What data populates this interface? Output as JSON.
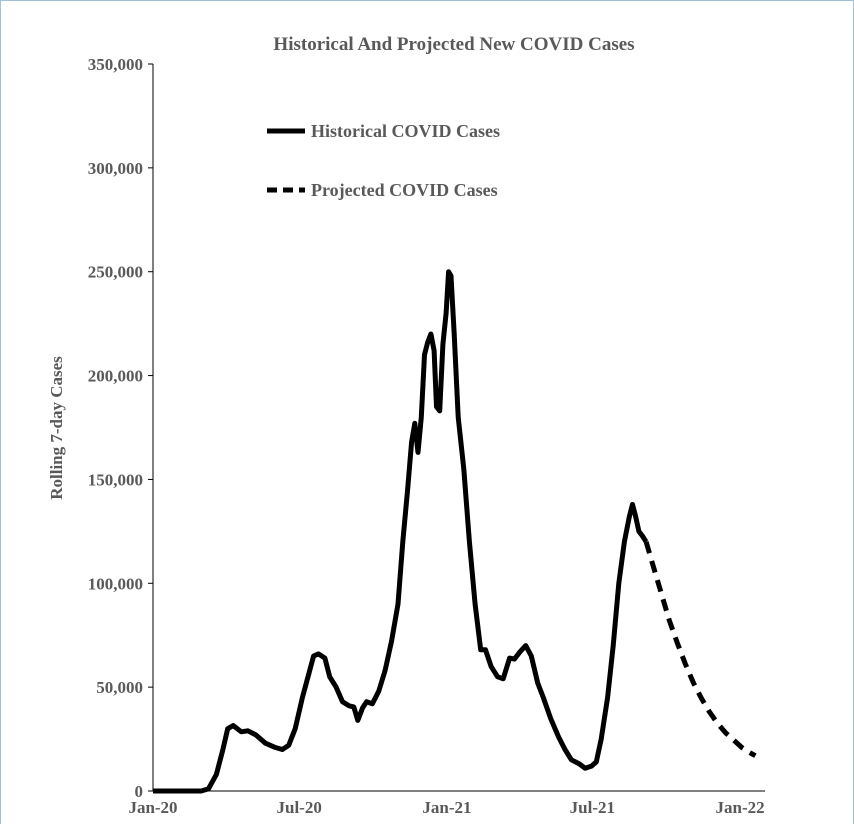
{
  "chart_data": {
    "type": "line",
    "title": "Historical And Projected New COVID Cases",
    "xlabel": "",
    "ylabel": "Rolling 7-day Cases",
    "x_tick_labels": [
      "Jan-20",
      "Jul-20",
      "Jan-21",
      "Jul-21",
      "Jan-22"
    ],
    "x_tick_dates": [
      "2020-01-01",
      "2020-07-01",
      "2021-01-01",
      "2021-07-01",
      "2022-01-01"
    ],
    "y_tick_labels": [
      "0",
      "50,000",
      "100,000",
      "150,000",
      "200,000",
      "250,000",
      "300,000",
      "350,000"
    ],
    "xlim": [
      "2020-01-01",
      "2022-02-01"
    ],
    "ylim": [
      0,
      350000
    ],
    "grid": false,
    "legend_position": "top-left",
    "series": [
      {
        "name": "Historical COVID Cases",
        "style": "solid",
        "color": "#000000",
        "points": [
          [
            "2020-01-01",
            0
          ],
          [
            "2020-02-01",
            0
          ],
          [
            "2020-03-01",
            0
          ],
          [
            "2020-03-10",
            1000
          ],
          [
            "2020-03-20",
            8000
          ],
          [
            "2020-03-28",
            20000
          ],
          [
            "2020-04-03",
            30000
          ],
          [
            "2020-04-10",
            31500
          ],
          [
            "2020-04-20",
            28500
          ],
          [
            "2020-04-28",
            29000
          ],
          [
            "2020-05-08",
            27000
          ],
          [
            "2020-05-20",
            23000
          ],
          [
            "2020-06-01",
            21000
          ],
          [
            "2020-06-10",
            20000
          ],
          [
            "2020-06-18",
            22000
          ],
          [
            "2020-06-26",
            30000
          ],
          [
            "2020-07-05",
            45000
          ],
          [
            "2020-07-12",
            55000
          ],
          [
            "2020-07-19",
            65000
          ],
          [
            "2020-07-25",
            66000
          ],
          [
            "2020-08-02",
            64000
          ],
          [
            "2020-08-08",
            55000
          ],
          [
            "2020-08-16",
            50000
          ],
          [
            "2020-08-24",
            43000
          ],
          [
            "2020-09-01",
            41000
          ],
          [
            "2020-09-07",
            40500
          ],
          [
            "2020-09-12",
            34000
          ],
          [
            "2020-09-18",
            40000
          ],
          [
            "2020-09-23",
            43000
          ],
          [
            "2020-09-30",
            42000
          ],
          [
            "2020-10-08",
            48000
          ],
          [
            "2020-10-16",
            58000
          ],
          [
            "2020-10-24",
            72000
          ],
          [
            "2020-11-01",
            90000
          ],
          [
            "2020-11-07",
            120000
          ],
          [
            "2020-11-13",
            145000
          ],
          [
            "2020-11-18",
            168000
          ],
          [
            "2020-11-22",
            177000
          ],
          [
            "2020-11-26",
            163000
          ],
          [
            "2020-11-30",
            180000
          ],
          [
            "2020-12-04",
            210000
          ],
          [
            "2020-12-08",
            216000
          ],
          [
            "2020-12-12",
            220000
          ],
          [
            "2020-12-16",
            212000
          ],
          [
            "2020-12-19",
            185000
          ],
          [
            "2020-12-23",
            183000
          ],
          [
            "2020-12-27",
            215000
          ],
          [
            "2020-12-31",
            230000
          ],
          [
            "2021-01-03",
            250000
          ],
          [
            "2021-01-06",
            248000
          ],
          [
            "2021-01-10",
            220000
          ],
          [
            "2021-01-15",
            180000
          ],
          [
            "2021-01-22",
            155000
          ],
          [
            "2021-01-29",
            120000
          ],
          [
            "2021-02-05",
            90000
          ],
          [
            "2021-02-12",
            68000
          ],
          [
            "2021-02-18",
            68000
          ],
          [
            "2021-02-25",
            60000
          ],
          [
            "2021-03-05",
            55000
          ],
          [
            "2021-03-12",
            54000
          ],
          [
            "2021-03-20",
            64000
          ],
          [
            "2021-03-26",
            63500
          ],
          [
            "2021-04-02",
            67000
          ],
          [
            "2021-04-09",
            70000
          ],
          [
            "2021-04-16",
            65000
          ],
          [
            "2021-04-24",
            52000
          ],
          [
            "2021-05-01",
            45000
          ],
          [
            "2021-05-10",
            35000
          ],
          [
            "2021-05-20",
            26000
          ],
          [
            "2021-05-28",
            20000
          ],
          [
            "2021-06-05",
            15000
          ],
          [
            "2021-06-15",
            13000
          ],
          [
            "2021-06-22",
            11000
          ],
          [
            "2021-06-30",
            12000
          ],
          [
            "2021-07-06",
            14000
          ],
          [
            "2021-07-12",
            25000
          ],
          [
            "2021-07-20",
            45000
          ],
          [
            "2021-07-27",
            70000
          ],
          [
            "2021-08-03",
            100000
          ],
          [
            "2021-08-10",
            120000
          ],
          [
            "2021-08-16",
            132000
          ],
          [
            "2021-08-20",
            138000
          ],
          [
            "2021-08-24",
            132000
          ],
          [
            "2021-08-28",
            125000
          ],
          [
            "2021-09-01",
            123000
          ],
          [
            "2021-09-06",
            120000
          ]
        ]
      },
      {
        "name": "Projected COVID Cases",
        "style": "dashed",
        "color": "#000000",
        "points": [
          [
            "2021-09-06",
            120000
          ],
          [
            "2021-09-15",
            108000
          ],
          [
            "2021-09-25",
            95000
          ],
          [
            "2021-10-05",
            82000
          ],
          [
            "2021-10-15",
            71000
          ],
          [
            "2021-10-25",
            61000
          ],
          [
            "2021-11-04",
            52000
          ],
          [
            "2021-11-14",
            44500
          ],
          [
            "2021-11-24",
            38000
          ],
          [
            "2021-12-04",
            32500
          ],
          [
            "2021-12-14",
            28000
          ],
          [
            "2021-12-24",
            24500
          ],
          [
            "2022-01-03",
            21000
          ],
          [
            "2022-01-13",
            18500
          ],
          [
            "2022-01-20",
            17000
          ]
        ]
      }
    ]
  }
}
